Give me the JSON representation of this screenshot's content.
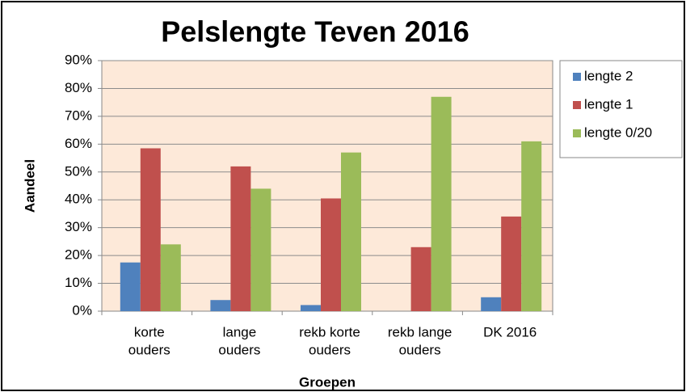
{
  "chart_data": {
    "type": "bar",
    "title": "Pelslengte Teven 2016",
    "x_label": "Groepen",
    "y_label": "Aandeel",
    "categories": [
      [
        "korte",
        "ouders"
      ],
      [
        "lange",
        "ouders"
      ],
      [
        "rekb korte",
        "ouders"
      ],
      [
        "rekb lange",
        "ouders"
      ],
      [
        "DK 2016"
      ]
    ],
    "series": [
      {
        "name": "lengte 2",
        "color": "#4f81bd",
        "values": [
          17.5,
          4,
          2.2,
          0,
          5
        ]
      },
      {
        "name": "lengte 1",
        "color": "#c0504d",
        "values": [
          58.5,
          52,
          40.5,
          23,
          34
        ]
      },
      {
        "name": "lengte 0/20",
        "color": "#9bbb59",
        "values": [
          24,
          44,
          57,
          77,
          61
        ]
      }
    ],
    "ylim": [
      0,
      90
    ],
    "yticks": [
      {
        "value": 0,
        "label": "0%"
      },
      {
        "value": 10,
        "label": "10%"
      },
      {
        "value": 20,
        "label": "20%"
      },
      {
        "value": 30,
        "label": "30%"
      },
      {
        "value": 40,
        "label": "40%"
      },
      {
        "value": 50,
        "label": "50%"
      },
      {
        "value": 60,
        "label": "60%"
      },
      {
        "value": 70,
        "label": "70%"
      },
      {
        "value": 80,
        "label": "80%"
      },
      {
        "value": 90,
        "label": "90%"
      }
    ],
    "grid": true,
    "legend": "right"
  }
}
